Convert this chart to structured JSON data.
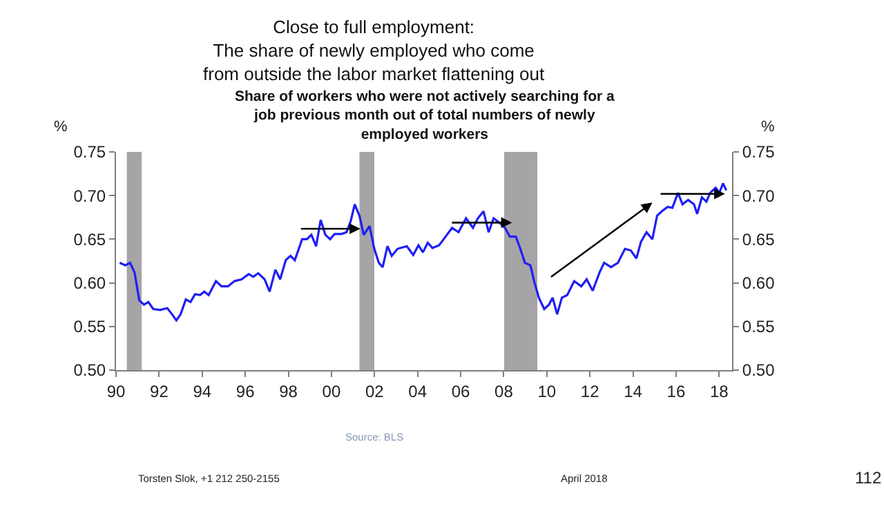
{
  "chart_data": {
    "type": "line",
    "title": "Close to full employment:\nThe share of newly employed who come\nfrom outside the labor market flattening out",
    "subtitle": "Share of workers who were not actively searching for a\njob previous month out of total numbers of newly\nemployed workers",
    "ylabel": "%",
    "y2label": "%",
    "xlim": [
      1990,
      2018.6
    ],
    "xticks": [
      {
        "value": 1990,
        "label": "90"
      },
      {
        "value": 1992,
        "label": "92"
      },
      {
        "value": 1994,
        "label": "94"
      },
      {
        "value": 1996,
        "label": "96"
      },
      {
        "value": 1998,
        "label": "98"
      },
      {
        "value": 2000,
        "label": "00"
      },
      {
        "value": 2002,
        "label": "02"
      },
      {
        "value": 2004,
        "label": "04"
      },
      {
        "value": 2006,
        "label": "06"
      },
      {
        "value": 2008,
        "label": "08"
      },
      {
        "value": 2010,
        "label": "10"
      },
      {
        "value": 2012,
        "label": "12"
      },
      {
        "value": 2014,
        "label": "14"
      },
      {
        "value": 2016,
        "label": "16"
      },
      {
        "value": 2018,
        "label": "18"
      }
    ],
    "ylim": [
      0.5,
      0.75
    ],
    "yticks": [
      {
        "value": 0.5,
        "label": "0.50"
      },
      {
        "value": 0.55,
        "label": "0.55"
      },
      {
        "value": 0.6,
        "label": "0.60"
      },
      {
        "value": 0.65,
        "label": "0.65"
      },
      {
        "value": 0.7,
        "label": "0.70"
      },
      {
        "value": 0.75,
        "label": "0.75"
      }
    ],
    "y2lim": [
      0.5,
      0.75
    ],
    "y2ticks": [
      {
        "value": 0.5,
        "label": "0.50"
      },
      {
        "value": 0.55,
        "label": "0.55"
      },
      {
        "value": 0.6,
        "label": "0.60"
      },
      {
        "value": 0.65,
        "label": "0.65"
      },
      {
        "value": 0.7,
        "label": "0.70"
      },
      {
        "value": 0.75,
        "label": "0.75"
      }
    ],
    "grid": false,
    "bands": [
      {
        "axis": "x",
        "from": 1990.5,
        "to": 1991.19,
        "color": "#a6a4a7"
      },
      {
        "axis": "x",
        "from": 2001.3,
        "to": 2001.99,
        "color": "#a6a4a7"
      },
      {
        "axis": "x",
        "from": 2008.02,
        "to": 2009.56,
        "color": "#a6a4a7"
      }
    ],
    "series": [
      {
        "color": "#1f1ff5",
        "x": [
          1990.17,
          1990.43,
          1990.65,
          1990.86,
          1991.08,
          1991.3,
          1991.5,
          1991.73,
          1992.05,
          1992.38,
          1992.6,
          1992.8,
          1993.0,
          1993.24,
          1993.46,
          1993.67,
          1993.9,
          1994.1,
          1994.3,
          1994.64,
          1994.9,
          1995.2,
          1995.5,
          1995.83,
          1996.16,
          1996.37,
          1996.6,
          1996.9,
          1997.13,
          1997.4,
          1997.62,
          1997.88,
          1998.1,
          1998.3,
          1998.64,
          1998.86,
          1999.07,
          1999.29,
          1999.5,
          1999.72,
          1999.94,
          2000.15,
          2000.47,
          2000.7,
          2000.9,
          2001.08,
          2001.3,
          2001.5,
          2001.77,
          2001.99,
          2002.2,
          2002.38,
          2002.6,
          2002.8,
          2003.07,
          2003.5,
          2003.8,
          2004.04,
          2004.25,
          2004.47,
          2004.69,
          2005.0,
          2005.3,
          2005.6,
          2005.9,
          2006.25,
          2006.57,
          2006.8,
          2007.06,
          2007.3,
          2007.53,
          2007.8,
          2008.06,
          2008.28,
          2008.56,
          2008.77,
          2008.98,
          2009.24,
          2009.41,
          2009.63,
          2009.88,
          2010.1,
          2010.27,
          2010.48,
          2010.7,
          2010.95,
          2011.27,
          2011.6,
          2011.85,
          2012.13,
          2012.45,
          2012.66,
          2012.98,
          2013.3,
          2013.63,
          2013.9,
          2014.16,
          2014.37,
          2014.63,
          2014.9,
          2015.12,
          2015.34,
          2015.6,
          2015.83,
          2016.09,
          2016.3,
          2016.56,
          2016.83,
          2016.98,
          2017.2,
          2017.41,
          2017.58,
          2017.84,
          2018.01,
          2018.18,
          2018.33
        ],
        "values": [
          0.623,
          0.62,
          0.623,
          0.612,
          0.58,
          0.575,
          0.578,
          0.57,
          0.569,
          0.571,
          0.564,
          0.557,
          0.564,
          0.581,
          0.578,
          0.587,
          0.586,
          0.59,
          0.586,
          0.602,
          0.596,
          0.596,
          0.602,
          0.604,
          0.61,
          0.607,
          0.611,
          0.604,
          0.59,
          0.615,
          0.604,
          0.626,
          0.631,
          0.626,
          0.65,
          0.65,
          0.655,
          0.642,
          0.672,
          0.655,
          0.65,
          0.656,
          0.656,
          0.658,
          0.671,
          0.69,
          0.677,
          0.655,
          0.665,
          0.639,
          0.623,
          0.618,
          0.642,
          0.631,
          0.639,
          0.642,
          0.632,
          0.643,
          0.635,
          0.646,
          0.64,
          0.643,
          0.653,
          0.663,
          0.658,
          0.674,
          0.663,
          0.674,
          0.682,
          0.658,
          0.674,
          0.669,
          0.663,
          0.653,
          0.653,
          0.639,
          0.623,
          0.62,
          0.602,
          0.583,
          0.57,
          0.575,
          0.583,
          0.564,
          0.583,
          0.586,
          0.602,
          0.596,
          0.604,
          0.591,
          0.612,
          0.623,
          0.618,
          0.623,
          0.639,
          0.637,
          0.628,
          0.647,
          0.658,
          0.65,
          0.677,
          0.682,
          0.687,
          0.686,
          0.703,
          0.69,
          0.695,
          0.69,
          0.679,
          0.698,
          0.693,
          0.703,
          0.709,
          0.703,
          0.714,
          0.706
        ]
      }
    ],
    "annotations": [
      "Source: BLS",
      "Torsten Slok, +1 212 250-2155",
      "April 2018",
      "112"
    ]
  }
}
